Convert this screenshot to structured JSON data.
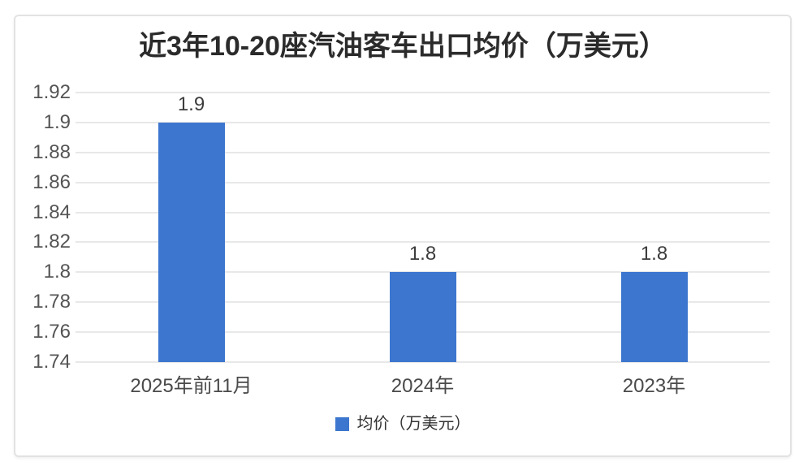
{
  "chart_data": {
    "type": "bar",
    "title": "近3年10-20座汽油客车出口均价（万美元）",
    "categories": [
      "2025年前11月",
      "2024年",
      "2023年"
    ],
    "values": [
      1.9,
      1.8,
      1.8
    ],
    "data_labels": [
      "1.9",
      "1.8",
      "1.8"
    ],
    "yticks": [
      1.92,
      1.9,
      1.88,
      1.86,
      1.84,
      1.82,
      1.8,
      1.78,
      1.76,
      1.74
    ],
    "ytick_labels": [
      "1.92",
      "1.9",
      "1.88",
      "1.86",
      "1.84",
      "1.82",
      "1.8",
      "1.78",
      "1.76",
      "1.74"
    ],
    "ylim": [
      1.74,
      1.92
    ],
    "grid": true,
    "xlabel": "",
    "ylabel": "",
    "legend_position": "bottom",
    "legend": [
      {
        "label": "均价（万美元）",
        "color": "#3d76ce"
      }
    ],
    "bar_color": "#3d76ce"
  },
  "colors": {
    "bar_blue": "#3d76ce",
    "gridline": "#e8e8e8",
    "title_text": "#2b2b2b",
    "axis_text": "#545454",
    "card_border": "#e2e2e2",
    "background": "#ffffff"
  }
}
